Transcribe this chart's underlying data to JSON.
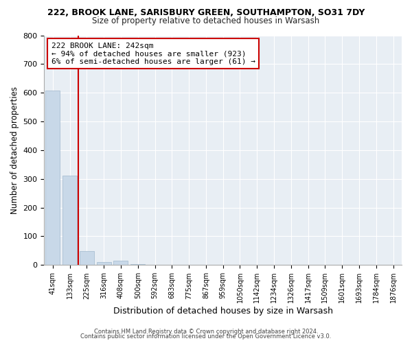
{
  "title_line1": "222, BROOK LANE, SARISBURY GREEN, SOUTHAMPTON, SO31 7DY",
  "title_line2": "Size of property relative to detached houses in Warsash",
  "xlabel": "Distribution of detached houses by size in Warsash",
  "ylabel": "Number of detached properties",
  "footer_line1": "Contains HM Land Registry data © Crown copyright and database right 2024.",
  "footer_line2": "Contains public sector information licensed under the Open Government Licence v3.0.",
  "annotation_line1": "222 BROOK LANE: 242sqm",
  "annotation_line2": "← 94% of detached houses are smaller (923)",
  "annotation_line3": "6% of semi-detached houses are larger (61) →",
  "bar_labels": [
    "41sqm",
    "133sqm",
    "225sqm",
    "316sqm",
    "408sqm",
    "500sqm",
    "592sqm",
    "683sqm",
    "775sqm",
    "867sqm",
    "959sqm",
    "1050sqm",
    "1142sqm",
    "1234sqm",
    "1326sqm",
    "1417sqm",
    "1509sqm",
    "1601sqm",
    "1693sqm",
    "1784sqm",
    "1876sqm"
  ],
  "bar_values": [
    607,
    311,
    48,
    11,
    14,
    3,
    0,
    0,
    0,
    0,
    0,
    0,
    0,
    0,
    0,
    0,
    0,
    0,
    0,
    0,
    0
  ],
  "bar_color": "#c8d8e8",
  "bar_edge_color": "#a0b8cc",
  "red_line_color": "#cc0000",
  "annotation_box_facecolor": "#ffffff",
  "annotation_box_edgecolor": "#cc0000",
  "background_color": "#e8eef4",
  "grid_color": "#ffffff",
  "ylim": [
    0,
    800
  ],
  "yticks": [
    0,
    100,
    200,
    300,
    400,
    500,
    600,
    700,
    800
  ],
  "red_line_x": 1.5,
  "figsize": [
    6.0,
    5.0
  ],
  "dpi": 100
}
